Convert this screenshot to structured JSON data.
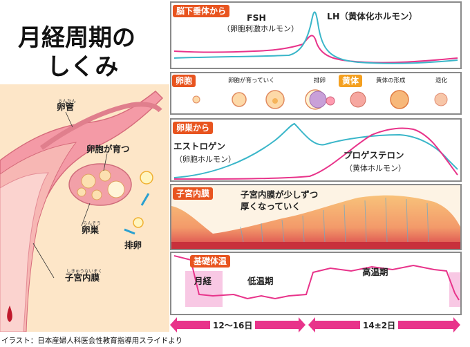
{
  "title": {
    "line1": "月経周期の",
    "line2": "しくみ"
  },
  "anatomy": {
    "fallopian_tube": {
      "ruby": "らんかん",
      "label": "卵管"
    },
    "follicle_growing": "卵胞が育つ",
    "ovary": {
      "ruby": "らんそう",
      "label": "卵巣"
    },
    "ovulation": "排卵",
    "endometrium": {
      "ruby": "しきゅうないまく",
      "label": "子宮内膜"
    }
  },
  "pituitary": {
    "tag": "脳下垂体から",
    "fsh": {
      "name": "FSH",
      "desc": "（卵胞刺激ホルモン）"
    },
    "lh": "LH（黄体化ホルモン）",
    "colors": {
      "fsh": "#e8338a",
      "lh": "#3ab6c9"
    }
  },
  "follicle_row": {
    "tag_follicle": "卵胞",
    "tag_corpus": "黄体",
    "stages": [
      "卵胞が育っていく",
      "排卵",
      "黄体の形成",
      "退化"
    ]
  },
  "ovary_hormones": {
    "tag": "卵巣から",
    "estrogen": {
      "name": "エストロゲン",
      "desc": "（卵胞ホルモン）"
    },
    "progesterone": {
      "name": "プロゲステロン",
      "desc": "（黄体ホルモン）"
    },
    "colors": {
      "estrogen": "#3ab6c9",
      "progesterone": "#e8338a"
    }
  },
  "endometrium_panel": {
    "tag": "子宮内膜",
    "note_line1": "子宮内膜が少しずつ",
    "note_line2": "厚くなっていく"
  },
  "bbt": {
    "tag": "基礎体温",
    "menstruation": "月経",
    "low_phase": "低温期",
    "high_phase": "高温期",
    "color": "#e8338a"
  },
  "timeline": {
    "first": "12～16日",
    "second": "14±2日"
  },
  "credit": "イラスト：日本産婦人科医会性教育指導用スライドより"
}
